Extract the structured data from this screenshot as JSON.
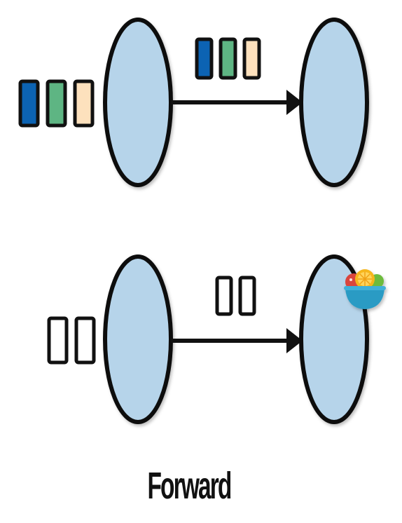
{
  "colors": {
    "node_fill": "#b6d4ea",
    "stroke": "#111111",
    "blue": "#0c63b3",
    "green": "#5eb583",
    "peach": "#fde1bd",
    "empty": "#ffffff",
    "bowl": "#2a9bc4"
  },
  "top_row": {
    "input_colors": [
      "blue",
      "green",
      "peach"
    ],
    "message_colors": [
      "blue",
      "green",
      "peach"
    ]
  },
  "bottom_row": {
    "input_colors": [
      "empty",
      "empty"
    ],
    "message_colors": [
      "empty",
      "empty"
    ]
  },
  "icons": {
    "emblem": "fruit-bowl-icon"
  },
  "caption": "Forward"
}
